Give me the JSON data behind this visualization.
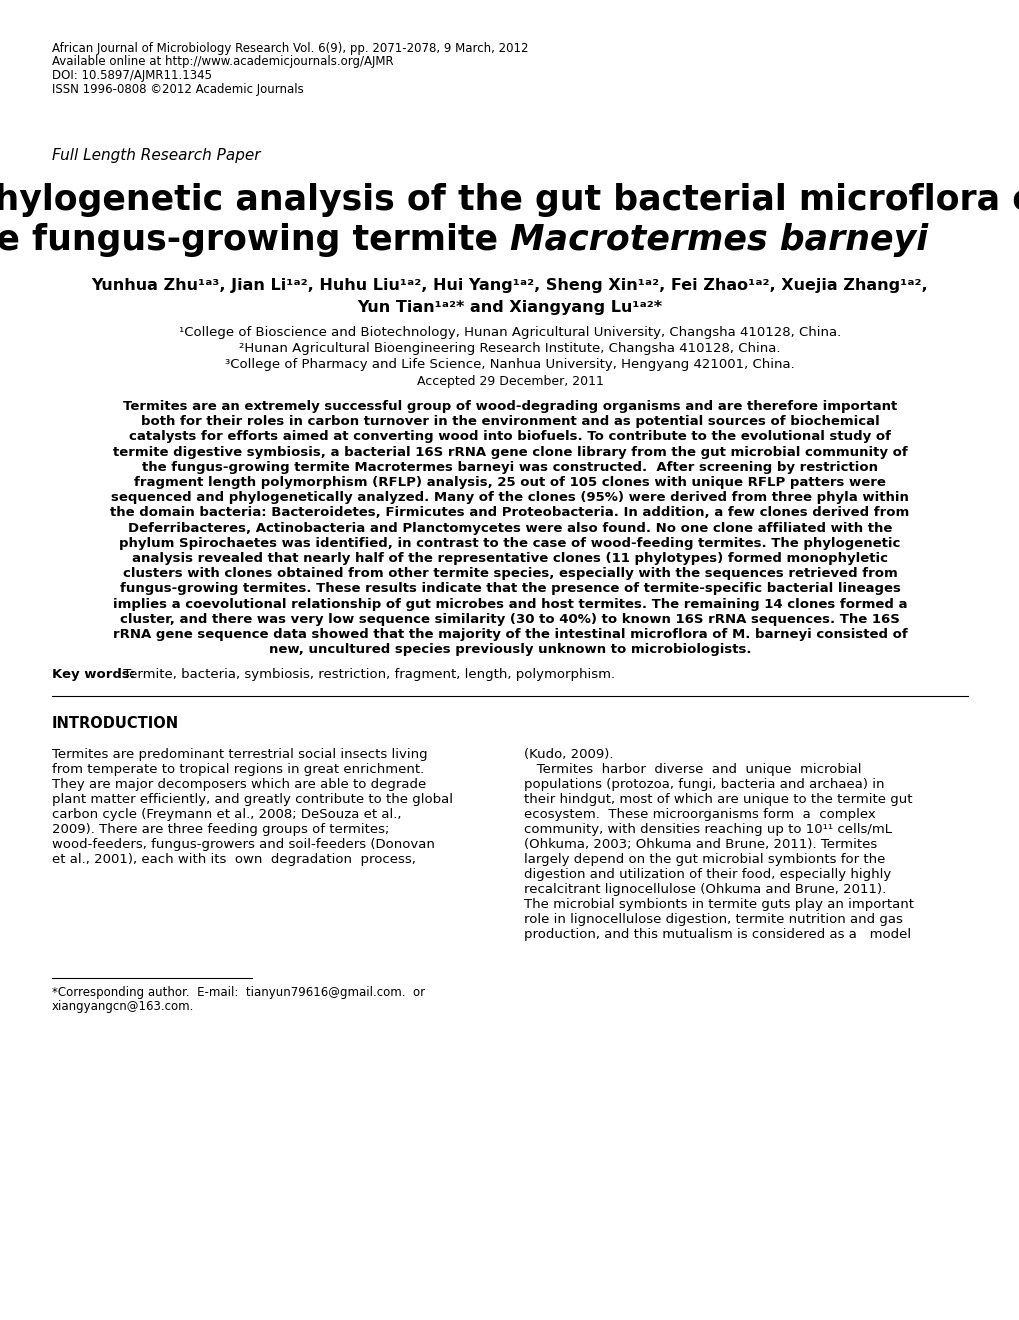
{
  "bg_color": "#ffffff",
  "header_line1": "African Journal of Microbiology Research Vol. 6(9), pp. 2071-2078, 9 March, 2012",
  "header_line2": "Available online at http://www.academicjournals.org/AJMR",
  "header_line3": "DOI: 10.5897/AJMR11.1345",
  "header_line4": "ISSN 1996-0808 ©2012 Academic Journals",
  "full_length": "Full Length Research Paper",
  "title_line1": "Phylogenetic analysis of the gut bacterial microflora of",
  "title_line2_normal": "the fungus-growing termite ",
  "title_line2_italic": "Macrotermes barneyi",
  "authors_line1": "Yunhua Zhu¹ᵃ³, Jian Li¹ᵃ², Huhu Liu¹ᵃ², Hui Yang¹ᵃ², Sheng Xin¹ᵃ², Fei Zhao¹ᵃ², Xuejia Zhang¹ᵃ²,",
  "authors_line2": "Yun Tian¹ᵃ²* and Xiangyang Lu¹ᵃ²*",
  "affil1": "¹College of Bioscience and Biotechnology, Hunan Agricultural University, Changsha 410128, China.",
  "affil2": "²Hunan Agricultural Bioengineering Research Institute, Changsha 410128, China.",
  "affil3": "³College of Pharmacy and Life Science, Nanhua University, Hengyang 421001, China.",
  "accepted": "Accepted 29 December, 2011",
  "keywords_bold": "Key words:",
  "keywords_rest": " Termite, bacteria, symbiosis, restriction, fragment, length, polymorphism.",
  "intro_heading": "INTRODUCTION",
  "footnote_line1": "*Corresponding author.  E-mail:  tianyun79616@gmail.com.  or",
  "footnote_line2": "xiangyangcn@163.com."
}
